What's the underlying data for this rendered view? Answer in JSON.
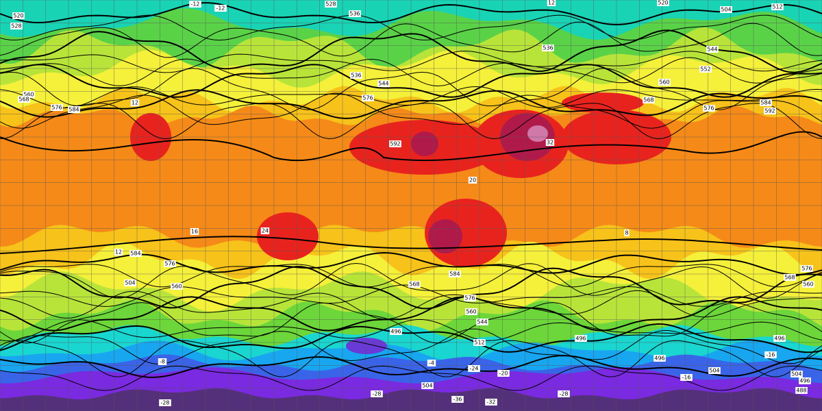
{
  "map": {
    "contour_labels": [
      "528",
      "536",
      "520",
      "504",
      "512",
      "520",
      "528",
      "536",
      "544",
      "544",
      "552",
      "560",
      "560",
      "568",
      "576",
      "584",
      "576",
      "568",
      "576",
      "584",
      "592",
      "592",
      "584",
      "576",
      "568",
      "576",
      "560",
      "544",
      "584",
      "496",
      "496",
      "496",
      "496",
      "504",
      "504",
      "496",
      "488",
      "504",
      "576",
      "568",
      "560",
      "504",
      "512",
      "560",
      "536"
    ],
    "temperature_labels": [
      "-12",
      "-12",
      "12",
      "12",
      "32",
      "20",
      "16",
      "12",
      "24",
      "-8",
      "-16",
      "-28",
      "-36",
      "-32",
      "-28",
      "-28",
      "-24",
      "-20",
      "-16",
      "-4",
      "8"
    ]
  }
}
